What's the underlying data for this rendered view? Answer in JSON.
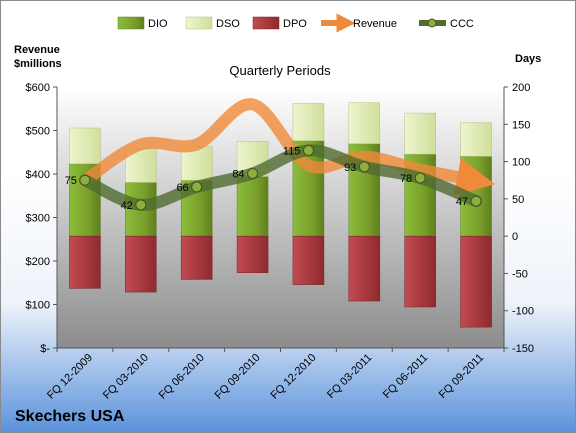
{
  "company": "Skechers USA",
  "legend": {
    "dio": "DIO",
    "dso": "DSO",
    "dpo": "DPO",
    "revenue": "Revenue",
    "ccc": "CCC"
  },
  "chart_data": {
    "type": "bar",
    "title": "Quarterly Periods",
    "ylabel_left": "Revenue\n$millions",
    "ylabel_right": "Days",
    "categories": [
      "FQ 12-2009",
      "FQ 03-2010",
      "FQ 06-2010",
      "FQ 09-2010",
      "FQ 12-2010",
      "FQ 03-2011",
      "FQ 06-2011",
      "FQ 09-2011"
    ],
    "left_axis": {
      "ylim": [
        0,
        600
      ],
      "ticks": [
        "$-",
        "$100",
        "$200",
        "$300",
        "$400",
        "$500",
        "$600"
      ]
    },
    "right_axis": {
      "ylim": [
        -150,
        200
      ],
      "ticks": [
        "-150",
        "-100",
        "-50",
        "0",
        "50",
        "100",
        "150",
        "200"
      ]
    },
    "series": [
      {
        "name": "DIO",
        "axis": "right",
        "values": [
          97,
          72,
          75,
          80,
          128,
          124,
          110,
          107
        ]
      },
      {
        "name": "DSO",
        "axis": "right",
        "values": [
          48,
          45,
          45,
          47,
          50,
          55,
          55,
          45
        ]
      },
      {
        "name": "DPO",
        "axis": "right",
        "values": [
          -70,
          -75,
          -58,
          -49,
          -65,
          -87,
          -95,
          -122
        ]
      },
      {
        "name": "Revenue",
        "axis": "left",
        "values": [
          385,
          468,
          468,
          560,
          420,
          440,
          410,
          385
        ]
      },
      {
        "name": "CCC",
        "axis": "right",
        "values": [
          75,
          42,
          66,
          84,
          115,
          93,
          78,
          47
        ]
      }
    ],
    "ccc_labels": [
      "75",
      "42",
      "66",
      "84",
      "115",
      "93",
      "78",
      "47"
    ],
    "colors": {
      "dio": "#7aa02c",
      "dso": "#dfeab6",
      "dpo": "#b23a3f",
      "revenue": "#ef8a3a",
      "ccc": "#506b30",
      "plot_bg_top": "#ffffff",
      "plot_bg_bottom": "#8c8c8c"
    }
  }
}
